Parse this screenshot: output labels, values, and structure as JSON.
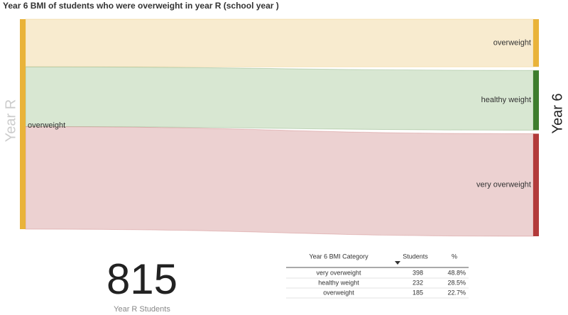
{
  "chart_data": {
    "type": "sankey",
    "title": "Year 6 BMI of students who were overweight in year R (school year )",
    "source": {
      "name": "overweight",
      "color": "#e9b33a"
    },
    "left_label": "Year R",
    "right_label": "Year 6",
    "targets": [
      {
        "name": "overweight",
        "color": "#e9b33a",
        "flow_color": "#f8ebcf",
        "value": 185
      },
      {
        "name": "healthy weight",
        "color": "#3e7d2e",
        "flow_color": "#d8e7d2",
        "value": 232
      },
      {
        "name": "very overweight",
        "color": "#b23a3a",
        "flow_color": "#ecd1d1",
        "value": 398
      }
    ]
  },
  "kpi": {
    "value": 815,
    "label": "Year R Students"
  },
  "table": {
    "header": [
      "Year 6 BMI Category",
      "Students",
      "%"
    ],
    "rows": [
      [
        "very overweight",
        "398",
        "48.8%"
      ],
      [
        "healthy weight",
        "232",
        "28.5%"
      ],
      [
        "overweight",
        "185",
        "22.7%"
      ]
    ]
  }
}
